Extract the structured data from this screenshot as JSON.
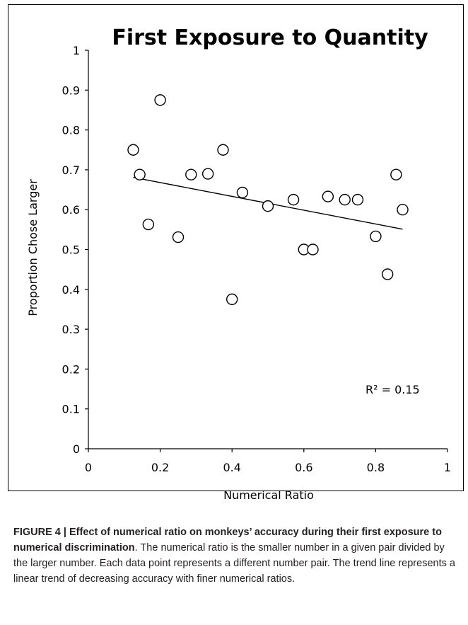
{
  "chart_data": {
    "type": "scatter",
    "title": "First Exposure to Quantity",
    "xlabel": "Numerical Ratio",
    "ylabel": "Proportion Chose Larger",
    "xlim": [
      0,
      1
    ],
    "ylim": [
      0,
      1
    ],
    "xticks": [
      "0",
      "0.2",
      "0.4",
      "0.6",
      "0.8",
      "1"
    ],
    "yticks": [
      "0",
      "0.1",
      "0.2",
      "0.3",
      "0.4",
      "0.5",
      "0.6",
      "0.7",
      "0.8",
      "0.9",
      "1"
    ],
    "points": [
      {
        "x": 0.125,
        "y": 0.75
      },
      {
        "x": 0.143,
        "y": 0.688
      },
      {
        "x": 0.167,
        "y": 0.563
      },
      {
        "x": 0.2,
        "y": 0.875
      },
      {
        "x": 0.25,
        "y": 0.531
      },
      {
        "x": 0.286,
        "y": 0.688
      },
      {
        "x": 0.333,
        "y": 0.69
      },
      {
        "x": 0.375,
        "y": 0.75
      },
      {
        "x": 0.4,
        "y": 0.375
      },
      {
        "x": 0.429,
        "y": 0.643
      },
      {
        "x": 0.5,
        "y": 0.609
      },
      {
        "x": 0.571,
        "y": 0.625
      },
      {
        "x": 0.6,
        "y": 0.5
      },
      {
        "x": 0.625,
        "y": 0.5
      },
      {
        "x": 0.667,
        "y": 0.633
      },
      {
        "x": 0.714,
        "y": 0.625
      },
      {
        "x": 0.75,
        "y": 0.625
      },
      {
        "x": 0.8,
        "y": 0.533
      },
      {
        "x": 0.833,
        "y": 0.438
      },
      {
        "x": 0.857,
        "y": 0.688
      },
      {
        "x": 0.875,
        "y": 0.6
      }
    ],
    "trendline": {
      "x": [
        0.125,
        0.875
      ],
      "y": [
        0.681,
        0.551
      ]
    },
    "annotation": "R² = 0.15"
  },
  "caption": {
    "head": "FIGURE 4 | Effect of numerical ratio on monkeys’ accuracy during their first exposure to numerical discrimination",
    "body": ". The numerical ratio is the smaller number in a given pair divided by the larger number. Each data point represents a different number pair. The trend line represents a linear trend of decreasing accuracy with finer numerical ratios."
  }
}
